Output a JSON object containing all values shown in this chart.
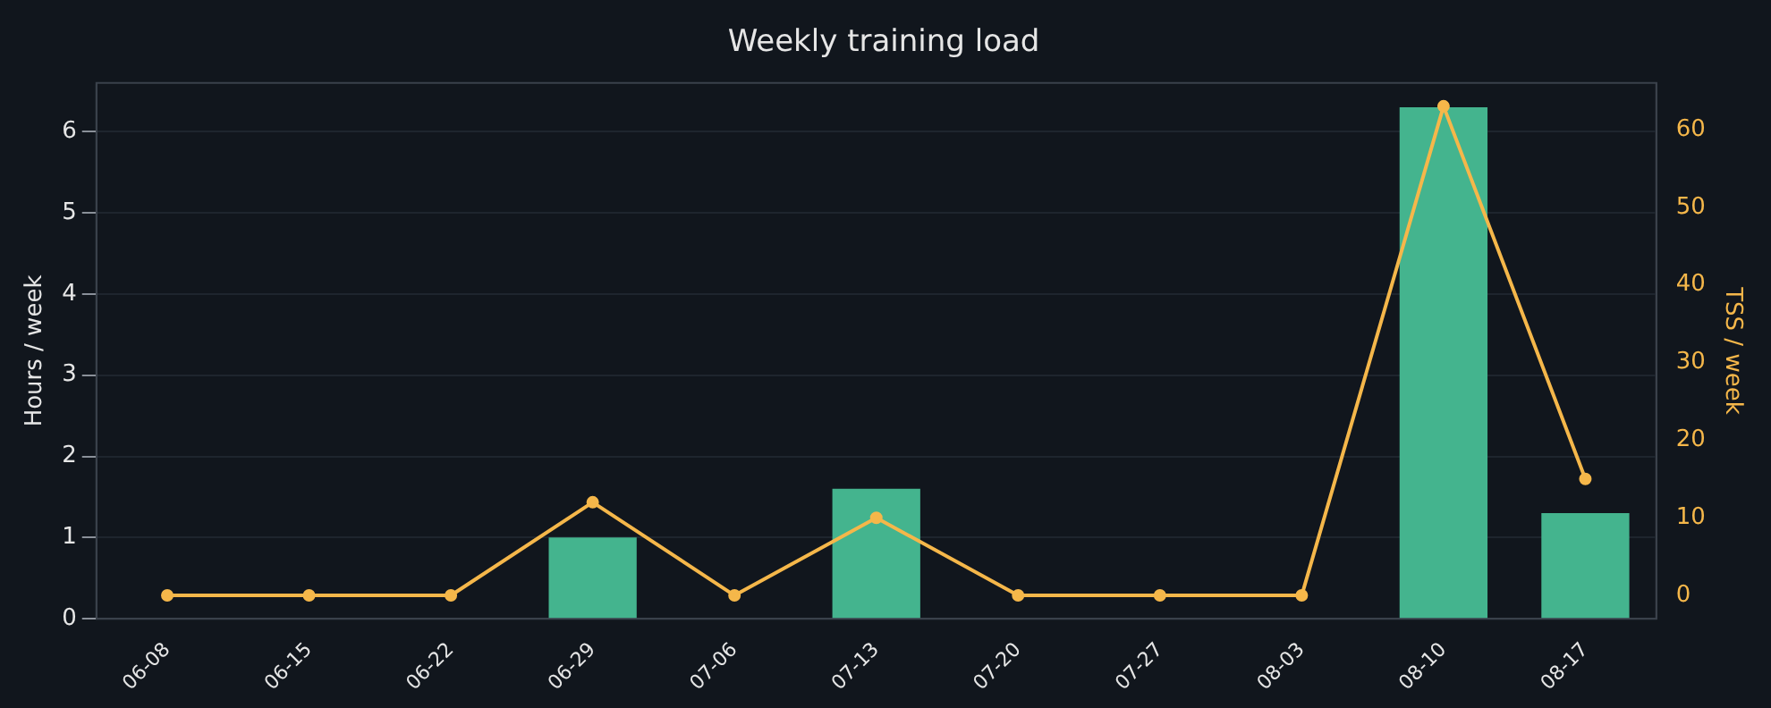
{
  "chart_data": {
    "type": "bar",
    "title": "Weekly training load",
    "ylabel": "Hours / week",
    "y2label": "TSS / week",
    "categories": [
      "06-08",
      "06-15",
      "06-22",
      "06-29",
      "07-06",
      "07-13",
      "07-20",
      "07-27",
      "08-03",
      "08-10",
      "08-17"
    ],
    "series": [
      {
        "color": "#44b48e",
        "values": [
          0,
          0,
          0,
          1.0,
          0,
          1.6,
          0,
          0,
          0,
          6.3,
          1.3
        ]
      },
      {
        "type": "line",
        "axis": "y2",
        "color": "#f5b74a",
        "values": [
          0,
          0,
          0,
          12,
          0,
          10,
          0,
          0,
          0,
          63,
          15
        ]
      }
    ],
    "ylim": [
      0,
      6.6
    ],
    "yticks": [
      0,
      1,
      2,
      3,
      4,
      5,
      6
    ],
    "y2lim": [
      -3,
      66
    ],
    "y2ticks": [
      0,
      10,
      20,
      30,
      40,
      50,
      60
    ],
    "grid": "y",
    "legend": false,
    "marker": "circle",
    "line_style": "solid"
  }
}
